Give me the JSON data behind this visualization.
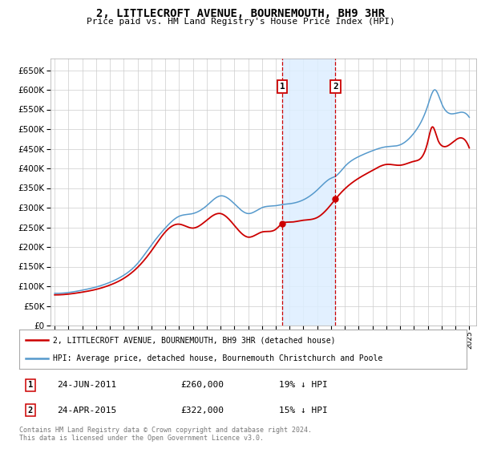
{
  "title": "2, LITTLECROFT AVENUE, BOURNEMOUTH, BH9 3HR",
  "subtitle": "Price paid vs. HM Land Registry's House Price Index (HPI)",
  "ylim": [
    0,
    680000
  ],
  "yticks": [
    0,
    50000,
    100000,
    150000,
    200000,
    250000,
    300000,
    350000,
    400000,
    450000,
    500000,
    550000,
    600000,
    650000
  ],
  "xlim_start": 1994.7,
  "xlim_end": 2025.5,
  "transaction1_x": 2011.48,
  "transaction1_price": 260000,
  "transaction1_label": "1",
  "transaction1_date": "24-JUN-2011",
  "transaction1_pct": "19% ↓ HPI",
  "transaction2_x": 2015.32,
  "transaction2_price": 322000,
  "transaction2_label": "2",
  "transaction2_date": "24-APR-2015",
  "transaction2_pct": "15% ↓ HPI",
  "line_color_property": "#cc0000",
  "line_color_hpi": "#5599cc",
  "shade_color": "#ddeeff",
  "vline_color": "#cc0000",
  "legend_label_property": "2, LITTLECROFT AVENUE, BOURNEMOUTH, BH9 3HR (detached house)",
  "legend_label_hpi": "HPI: Average price, detached house, Bournemouth Christchurch and Poole",
  "footer": "Contains HM Land Registry data © Crown copyright and database right 2024.\nThis data is licensed under the Open Government Licence v3.0.",
  "background_color": "#ffffff",
  "grid_color": "#cccccc",
  "box_color": "#cc0000",
  "title_fontsize": 10,
  "subtitle_fontsize": 8
}
